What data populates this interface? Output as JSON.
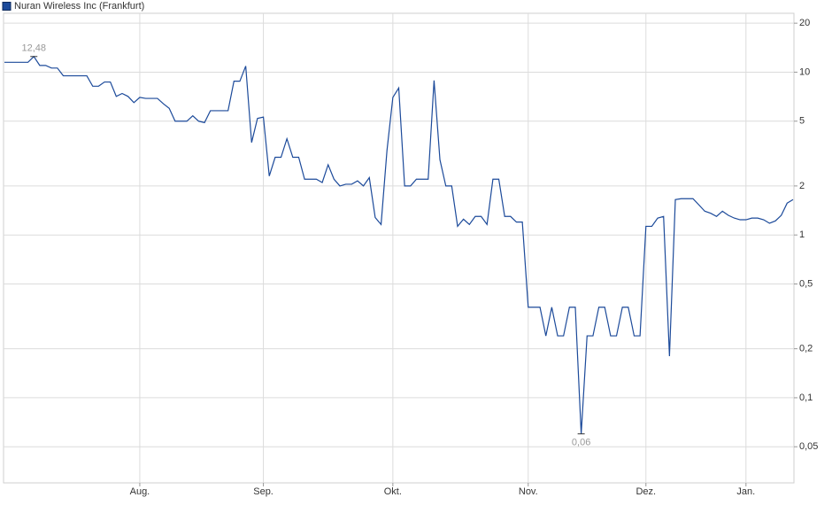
{
  "chart_data": {
    "type": "line",
    "log_scale": true,
    "grid": true,
    "legend": "top-left",
    "ylim": [
      0.03,
      23
    ],
    "yticks": [
      {
        "value": 0.05,
        "label": "0,05"
      },
      {
        "value": 0.1,
        "label": "0,1"
      },
      {
        "value": 0.2,
        "label": "0,2"
      },
      {
        "value": 0.5,
        "label": "0,5"
      },
      1,
      2,
      5,
      10,
      20
    ],
    "categories": [
      null,
      null,
      null,
      null,
      null,
      null,
      null,
      null,
      null,
      null,
      null,
      null,
      null,
      null,
      null,
      null,
      null,
      null,
      null,
      null,
      null,
      null,
      null,
      "Aug.",
      null,
      null,
      null,
      null,
      null,
      null,
      null,
      null,
      null,
      null,
      null,
      null,
      null,
      null,
      null,
      null,
      null,
      null,
      null,
      null,
      "Sep.",
      null,
      null,
      null,
      null,
      null,
      null,
      null,
      null,
      null,
      null,
      null,
      null,
      null,
      null,
      null,
      null,
      null,
      null,
      null,
      null,
      null,
      "Okt.",
      null,
      null,
      null,
      null,
      null,
      null,
      null,
      null,
      null,
      null,
      null,
      null,
      null,
      null,
      null,
      null,
      null,
      null,
      null,
      null,
      null,
      null,
      "Nov.",
      null,
      null,
      null,
      null,
      null,
      null,
      null,
      null,
      null,
      null,
      null,
      null,
      null,
      null,
      null,
      null,
      null,
      null,
      null,
      "Dez.",
      null,
      null,
      null,
      null,
      null,
      null,
      null,
      null,
      null,
      null,
      null,
      null,
      null,
      null,
      null,
      null,
      "Jan.",
      null,
      null,
      null,
      null,
      null,
      null,
      null,
      null
    ],
    "series": [
      {
        "name": "Nuran Wireless Inc (Frankfurt)",
        "color": "#1c4a9a",
        "values": [
          11.5,
          11.5,
          11.5,
          11.5,
          11.5,
          12.48,
          11.0,
          11.0,
          10.6,
          10.6,
          9.5,
          9.5,
          9.5,
          9.5,
          9.5,
          8.2,
          8.2,
          8.7,
          8.7,
          7.1,
          7.4,
          7.1,
          6.5,
          7.0,
          6.9,
          6.9,
          6.9,
          6.4,
          6.0,
          5.0,
          5.0,
          5.0,
          5.4,
          5.0,
          4.9,
          5.8,
          5.8,
          5.8,
          5.8,
          8.8,
          8.8,
          10.9,
          3.7,
          5.2,
          5.3,
          2.3,
          3.0,
          3.0,
          3.9,
          3.0,
          3.0,
          2.2,
          2.2,
          2.2,
          2.1,
          2.7,
          2.2,
          2.0,
          2.05,
          2.05,
          2.15,
          2.0,
          2.25,
          1.28,
          1.16,
          3.3,
          7.0,
          8.0,
          2.0,
          2.0,
          2.2,
          2.2,
          2.2,
          8.9,
          2.9,
          2.0,
          2.0,
          1.13,
          1.25,
          1.16,
          1.3,
          1.3,
          1.16,
          2.2,
          2.2,
          1.3,
          1.3,
          1.2,
          1.2,
          0.36,
          0.36,
          0.36,
          0.24,
          0.36,
          0.24,
          0.24,
          0.36,
          0.36,
          0.06,
          0.24,
          0.24,
          0.36,
          0.36,
          0.24,
          0.24,
          0.36,
          0.36,
          0.24,
          0.24,
          1.13,
          1.13,
          1.27,
          1.3,
          0.18,
          1.65,
          1.67,
          1.67,
          1.67,
          1.53,
          1.4,
          1.36,
          1.3,
          1.4,
          1.32,
          1.27,
          1.24,
          1.24,
          1.27,
          1.27,
          1.24,
          1.18,
          1.22,
          1.32,
          1.57,
          1.65
        ],
        "value_labels": [
          null,
          null,
          null,
          null,
          null,
          "12,48",
          null,
          null,
          null,
          null,
          null,
          null,
          null,
          null,
          null,
          null,
          null,
          null,
          null,
          null,
          null,
          null,
          null,
          null,
          null,
          null,
          null,
          null,
          null,
          null,
          null,
          null,
          null,
          null,
          null,
          null,
          null,
          null,
          null,
          null,
          null,
          null,
          null,
          null,
          null,
          null,
          null,
          null,
          null,
          null,
          null,
          null,
          null,
          null,
          null,
          null,
          null,
          null,
          null,
          null,
          null,
          null,
          null,
          null,
          null,
          null,
          null,
          null,
          null,
          null,
          null,
          null,
          null,
          null,
          null,
          null,
          null,
          null,
          null,
          null,
          null,
          null,
          null,
          null,
          null,
          null,
          null,
          null,
          null,
          null,
          null,
          null,
          null,
          null,
          null,
          null,
          null,
          null,
          "0,06",
          null,
          null,
          null,
          null,
          null,
          null,
          null,
          null,
          null,
          null,
          null,
          null,
          null,
          null,
          null,
          null,
          null,
          null,
          null,
          null,
          null,
          null,
          null,
          null,
          null,
          null,
          null,
          null,
          null,
          null,
          null,
          null,
          null,
          null,
          null,
          null
        ]
      }
    ]
  }
}
